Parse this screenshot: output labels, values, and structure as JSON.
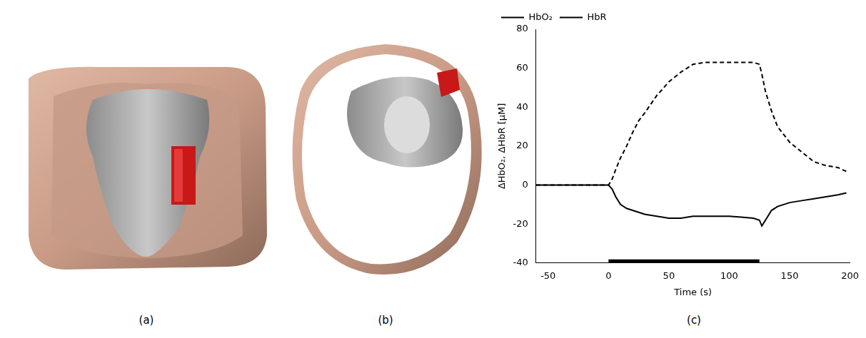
{
  "panel_labels": [
    "(a)",
    "(b)",
    "(c)"
  ],
  "chart_data": {
    "type": "line",
    "x_label": "Time (s)",
    "y_label": "ΔHbO₂, ΔHbR [μM]",
    "x": [
      -60,
      -40,
      -20,
      0,
      3,
      6,
      10,
      15,
      20,
      25,
      30,
      40,
      50,
      60,
      70,
      80,
      90,
      100,
      110,
      120,
      125,
      127,
      130,
      135,
      140,
      150,
      160,
      170,
      180,
      190,
      197
    ],
    "series": [
      {
        "name": "HbO₂",
        "color": "#000000",
        "line_style": "dashed",
        "values": [
          0,
          0,
          0,
          0,
          3,
          8,
          14,
          20,
          27,
          33,
          37,
          46,
          53,
          58,
          62,
          63,
          63,
          63,
          63,
          63,
          62,
          57,
          48,
          38,
          30,
          22,
          17,
          12,
          10,
          9,
          7
        ]
      },
      {
        "name": "HbR",
        "color": "#000000",
        "line_style": "solid",
        "values": [
          0,
          0,
          0,
          0,
          -2,
          -6,
          -10,
          -12,
          -13,
          -14,
          -15,
          -16,
          -17,
          -17,
          -16,
          -16,
          -16,
          -16,
          -16.5,
          -17,
          -18,
          -21,
          -18,
          -13,
          -11,
          -9,
          -8,
          -7,
          -6,
          -5,
          -4
        ]
      }
    ],
    "stimulus": {
      "start": 0,
      "end": 125,
      "y": -40,
      "color": "#000000"
    },
    "xlim": [
      -60,
      200
    ],
    "xticks": [
      -50,
      0,
      50,
      100,
      150,
      200
    ],
    "ylim": [
      -40,
      80
    ],
    "yticks": [
      -40,
      -20,
      0,
      20,
      40,
      60,
      80
    ],
    "grid": false,
    "legend": "top-left"
  }
}
